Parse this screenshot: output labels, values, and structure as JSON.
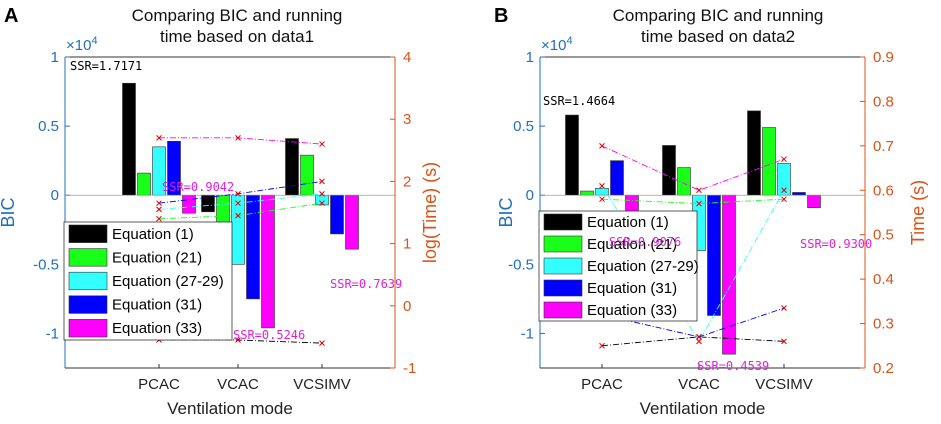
{
  "figure": {
    "panel_labels": [
      "A",
      "B"
    ]
  },
  "colors": {
    "left_axis": "#1f6fbf",
    "right_axis": "#d95319",
    "series": [
      "#000000",
      "#1aff1a",
      "#33ffff",
      "#0000ff",
      "#ff00ff"
    ],
    "bar_border": "#333333",
    "ssr_text": "#e020e0"
  },
  "chart_data": [
    {
      "type": "bar",
      "panel": "A",
      "title": [
        "Comparing BIC and running",
        "time based on data1"
      ],
      "xlabel": "Ventilation mode",
      "ylabel": "BIC",
      "ylabel_right": "log(Time) (s)",
      "exponent": "×10",
      "exponent_power": "4",
      "categories": [
        "PCAC",
        "VCAC",
        "VCSIMV"
      ],
      "ylim": [
        -1.25,
        1
      ],
      "yticks": [
        -1,
        -0.5,
        0,
        0.5,
        1
      ],
      "ytick_labels": [
        "-1",
        "-0.5",
        "0",
        "0.5",
        "1"
      ],
      "ylim_right": [
        -1,
        4
      ],
      "yticks_right": [
        -1,
        0,
        1,
        2,
        3,
        4
      ],
      "ytick_labels_right": [
        "-1",
        "0",
        "1",
        "2",
        "3",
        "4"
      ],
      "series": [
        {
          "name": "Equation (1)",
          "values": [
            0.81,
            -0.12,
            0.41
          ]
        },
        {
          "name": "Equation (21)",
          "values": [
            0.16,
            -0.22,
            0.29
          ]
        },
        {
          "name": "Equation (27-29)",
          "values": [
            0.35,
            -0.5,
            -0.07
          ]
        },
        {
          "name": "Equation (31)",
          "values": [
            0.39,
            -0.75,
            -0.28
          ]
        },
        {
          "name": "Equation (33)",
          "values": [
            -0.13,
            -0.96,
            -0.39
          ]
        }
      ],
      "time_series": [
        {
          "name": "Equation (1)",
          "values": [
            -0.55,
            -0.55,
            -0.6
          ]
        },
        {
          "name": "Equation (21)",
          "values": [
            1.4,
            1.45,
            1.65
          ]
        },
        {
          "name": "Equation (27-29)",
          "values": [
            1.55,
            1.65,
            1.8
          ]
        },
        {
          "name": "Equation (31)",
          "values": [
            1.65,
            1.8,
            2.0
          ]
        },
        {
          "name": "Equation (33)",
          "values": [
            2.7,
            2.7,
            2.6
          ]
        }
      ],
      "ssr_labels": [
        {
          "text": "SSR=1.7171",
          "color": "#000000"
        },
        {
          "text": "SSR=0.9042",
          "color": "#e020e0"
        },
        {
          "text": "SSR=0.7639",
          "color": "#e020e0"
        },
        {
          "text": "SSR=0.5246",
          "color": "#e020e0"
        }
      ]
    },
    {
      "type": "bar",
      "panel": "B",
      "title": [
        "Comparing BIC and running",
        "time based on data2"
      ],
      "xlabel": "Ventilation mode",
      "ylabel": "BIC",
      "ylabel_right": "Time (s)",
      "exponent": "×10",
      "exponent_power": "4",
      "categories": [
        "PCAC",
        "VCAC",
        "VCSIMV"
      ],
      "ylim": [
        -1.25,
        1
      ],
      "yticks": [
        -1,
        -0.5,
        0,
        0.5,
        1
      ],
      "ytick_labels": [
        "-1",
        "-0.5",
        "0",
        "0.5",
        "1"
      ],
      "ylim_right": [
        0.2,
        0.9
      ],
      "yticks_right": [
        0.2,
        0.3,
        0.4,
        0.5,
        0.6,
        0.7,
        0.8,
        0.9
      ],
      "ytick_labels_right": [
        "0.2",
        "0.3",
        "0.4",
        "0.5",
        "0.6",
        "0.7",
        "0.8",
        "0.9"
      ],
      "series": [
        {
          "name": "Equation (1)",
          "values": [
            0.58,
            0.36,
            0.61
          ]
        },
        {
          "name": "Equation (21)",
          "values": [
            0.03,
            0.2,
            0.49
          ]
        },
        {
          "name": "Equation (27-29)",
          "values": [
            0.05,
            -0.4,
            0.23
          ]
        },
        {
          "name": "Equation (31)",
          "values": [
            0.25,
            -0.87,
            0.02
          ]
        },
        {
          "name": "Equation (33)",
          "values": [
            -0.12,
            -1.15,
            -0.09
          ]
        }
      ],
      "time_series": [
        {
          "name": "Equation (1)",
          "values": [
            0.25,
            0.27,
            0.26
          ]
        },
        {
          "name": "Equation (21)",
          "values": [
            0.58,
            0.57,
            0.58
          ]
        },
        {
          "name": "Equation (27-29)",
          "values": [
            0.61,
            0.26,
            0.6
          ]
        },
        {
          "name": "Equation (31)",
          "values": [
            0.32,
            0.27,
            0.335
          ]
        },
        {
          "name": "Equation (33)",
          "values": [
            0.7,
            0.6,
            0.67
          ]
        }
      ],
      "ssr_labels": [
        {
          "text": "SSR=1.4664",
          "color": "#000000"
        },
        {
          "text": "SSR=0.9076",
          "color": "#e020e0"
        },
        {
          "text": "SSR=0.9300",
          "color": "#e020e0"
        },
        {
          "text": "SSR=0.4539",
          "color": "#e020e0"
        }
      ]
    }
  ]
}
